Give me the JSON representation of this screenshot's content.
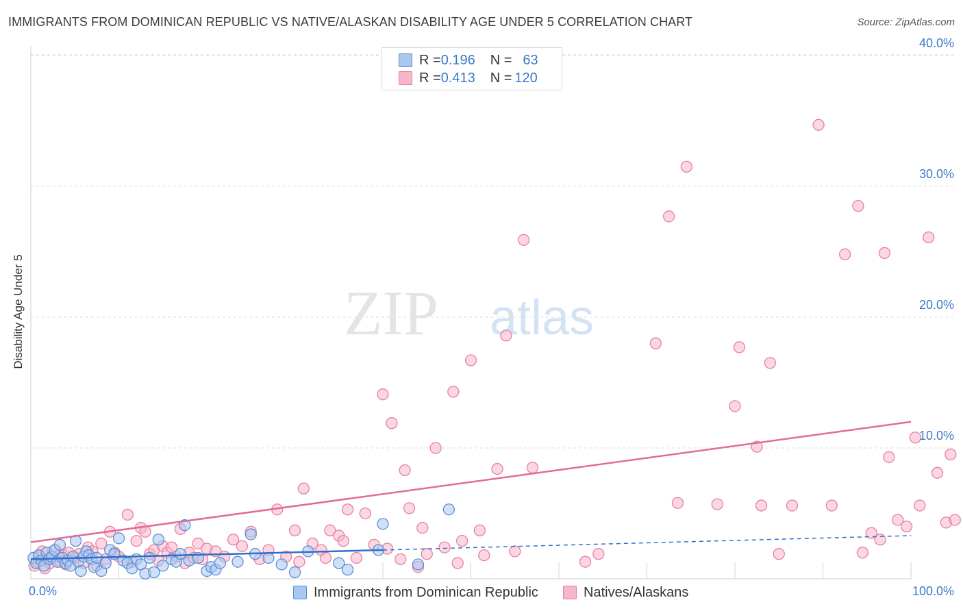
{
  "title": "IMMIGRANTS FROM DOMINICAN REPUBLIC VS NATIVE/ALASKAN DISABILITY AGE UNDER 5 CORRELATION CHART",
  "source": "Source: ZipAtlas.com",
  "watermark": {
    "zip": "ZIP",
    "atlas": "atlas"
  },
  "legend": {
    "rows": [
      {
        "r_label": "R = ",
        "r_value": "0.196",
        "n_label": "N = ",
        "n_value": "63"
      },
      {
        "r_label": "R = ",
        "r_value": "0.413",
        "n_label": "N = ",
        "n_value": "120"
      }
    ]
  },
  "colors": {
    "blue_fill": "#a9c8f0",
    "blue_stroke": "#5a8fd6",
    "blue_line": "#2f6fc9",
    "pink_fill": "#f6b7cb",
    "pink_stroke": "#e87fa1",
    "pink_line": "#e46a93",
    "tick_label": "#3a78c8",
    "grid": "#dcdcdc"
  },
  "chart_data": {
    "type": "scatter",
    "title": "IMMIGRANTS FROM DOMINICAN REPUBLIC VS NATIVE/ALASKAN DISABILITY AGE UNDER 5 CORRELATION CHART",
    "xlabel": "",
    "ylabel": "Disability Age Under 5",
    "xlim": [
      0,
      100
    ],
    "ylim": [
      0,
      42
    ],
    "x_tick_labels": [
      "0.0%",
      "100.0%"
    ],
    "y_ticks": [
      10,
      20,
      30,
      40
    ],
    "y_tick_labels": [
      "10.0%",
      "20.0%",
      "30.0%",
      "40.0%"
    ],
    "grid": true,
    "legend_position": "top-center",
    "series": [
      {
        "name": "Immigrants from Dominican Republic",
        "color": "#a9c8f0",
        "trend": {
          "x": [
            0,
            40
          ],
          "y": [
            1.5,
            2.2
          ],
          "dashed_x": [
            40,
            100
          ],
          "dashed_y": [
            2.2,
            3.3
          ]
        },
        "points": [
          [
            0.3,
            1.6
          ],
          [
            0.6,
            1.2
          ],
          [
            0.9,
            1.8
          ],
          [
            1.2,
            1.4
          ],
          [
            1.5,
            1.0
          ],
          [
            1.8,
            2.0
          ],
          [
            2.1,
            1.5
          ],
          [
            2.4,
            1.7
          ],
          [
            2.7,
            2.2
          ],
          [
            3.0,
            1.3
          ],
          [
            3.3,
            2.6
          ],
          [
            3.6,
            1.6
          ],
          [
            3.9,
            1.2
          ],
          [
            4.2,
            1.4
          ],
          [
            4.5,
            1.0
          ],
          [
            4.8,
            1.7
          ],
          [
            5.1,
            2.9
          ],
          [
            5.4,
            1.3
          ],
          [
            5.7,
            0.6
          ],
          [
            6.0,
            1.7
          ],
          [
            6.3,
            2.1
          ],
          [
            6.6,
            1.8
          ],
          [
            6.9,
            1.5
          ],
          [
            7.2,
            0.9
          ],
          [
            7.5,
            1.6
          ],
          [
            8.0,
            0.6
          ],
          [
            8.5,
            1.2
          ],
          [
            9.0,
            2.2
          ],
          [
            9.5,
            1.9
          ],
          [
            10.0,
            3.1
          ],
          [
            10.5,
            1.4
          ],
          [
            11.0,
            1.2
          ],
          [
            11.5,
            0.8
          ],
          [
            12.0,
            1.5
          ],
          [
            12.5,
            1.1
          ],
          [
            13.0,
            0.4
          ],
          [
            13.5,
            1.6
          ],
          [
            14.0,
            0.5
          ],
          [
            14.5,
            3.0
          ],
          [
            15.0,
            1.0
          ],
          [
            16.0,
            1.5
          ],
          [
            16.5,
            1.3
          ],
          [
            17.0,
            1.9
          ],
          [
            17.5,
            4.1
          ],
          [
            18.0,
            1.4
          ],
          [
            19.0,
            1.6
          ],
          [
            20.0,
            0.6
          ],
          [
            20.5,
            0.9
          ],
          [
            21.0,
            0.7
          ],
          [
            21.5,
            1.2
          ],
          [
            23.5,
            1.3
          ],
          [
            25.0,
            3.4
          ],
          [
            25.5,
            1.9
          ],
          [
            27.0,
            1.6
          ],
          [
            28.5,
            1.1
          ],
          [
            30.0,
            0.5
          ],
          [
            31.5,
            2.1
          ],
          [
            35.0,
            1.2
          ],
          [
            36.0,
            0.7
          ],
          [
            39.5,
            2.2
          ],
          [
            40.0,
            4.2
          ],
          [
            44.0,
            1.1
          ],
          [
            47.5,
            5.3
          ]
        ]
      },
      {
        "name": "Natives/Alaskans",
        "color": "#f6b7cb",
        "trend": {
          "x": [
            0,
            100
          ],
          "y": [
            2.8,
            12.0
          ]
        },
        "points": [
          [
            0.4,
            1.0
          ],
          [
            0.7,
            1.3
          ],
          [
            1.0,
            1.8
          ],
          [
            1.3,
            2.1
          ],
          [
            1.6,
            0.8
          ],
          [
            1.9,
            1.5
          ],
          [
            2.2,
            1.2
          ],
          [
            2.5,
            1.6
          ],
          [
            2.8,
            2.2
          ],
          [
            3.1,
            1.7
          ],
          [
            3.4,
            1.3
          ],
          [
            3.7,
            1.8
          ],
          [
            4.0,
            1.1
          ],
          [
            4.3,
            2.0
          ],
          [
            5.0,
            1.6
          ],
          [
            5.5,
            1.9
          ],
          [
            6.0,
            1.2
          ],
          [
            6.5,
            2.4
          ],
          [
            7.0,
            2.1
          ],
          [
            7.5,
            1.0
          ],
          [
            8.0,
            2.7
          ],
          [
            8.5,
            1.5
          ],
          [
            9.0,
            3.6
          ],
          [
            9.5,
            2.0
          ],
          [
            10.0,
            1.7
          ],
          [
            11.0,
            4.9
          ],
          [
            11.5,
            1.3
          ],
          [
            12.0,
            2.9
          ],
          [
            12.5,
            3.9
          ],
          [
            13.0,
            3.6
          ],
          [
            13.5,
            1.9
          ],
          [
            14.0,
            2.2
          ],
          [
            14.5,
            1.4
          ],
          [
            15.0,
            2.5
          ],
          [
            15.5,
            2.0
          ],
          [
            16.0,
            2.4
          ],
          [
            16.5,
            1.7
          ],
          [
            17.0,
            3.8
          ],
          [
            17.5,
            1.2
          ],
          [
            18.0,
            2.0
          ],
          [
            18.5,
            1.6
          ],
          [
            19.0,
            2.7
          ],
          [
            19.5,
            1.5
          ],
          [
            20.0,
            2.3
          ],
          [
            21.0,
            2.1
          ],
          [
            22.0,
            1.7
          ],
          [
            23.0,
            3.0
          ],
          [
            24.0,
            2.5
          ],
          [
            25.0,
            3.6
          ],
          [
            26.0,
            1.5
          ],
          [
            27.0,
            2.2
          ],
          [
            28.0,
            5.3
          ],
          [
            29.0,
            1.7
          ],
          [
            30.0,
            3.7
          ],
          [
            30.5,
            1.3
          ],
          [
            31.0,
            6.9
          ],
          [
            32.0,
            2.7
          ],
          [
            33.0,
            2.2
          ],
          [
            33.5,
            1.6
          ],
          [
            34.0,
            3.7
          ],
          [
            35.0,
            3.3
          ],
          [
            35.5,
            2.9
          ],
          [
            36.0,
            5.3
          ],
          [
            37.0,
            1.6
          ],
          [
            38.0,
            5.0
          ],
          [
            39.0,
            2.6
          ],
          [
            40.0,
            14.1
          ],
          [
            40.5,
            2.3
          ],
          [
            41.0,
            11.9
          ],
          [
            42.0,
            1.5
          ],
          [
            42.5,
            8.3
          ],
          [
            43.0,
            5.4
          ],
          [
            44.0,
            0.9
          ],
          [
            44.5,
            3.9
          ],
          [
            45.0,
            1.9
          ],
          [
            46.0,
            10.0
          ],
          [
            47.0,
            2.4
          ],
          [
            48.0,
            14.3
          ],
          [
            48.5,
            1.2
          ],
          [
            49.0,
            2.9
          ],
          [
            50.0,
            16.7
          ],
          [
            51.0,
            3.7
          ],
          [
            51.5,
            1.8
          ],
          [
            53.0,
            8.4
          ],
          [
            54.0,
            18.6
          ],
          [
            55.0,
            2.1
          ],
          [
            56.0,
            25.9
          ],
          [
            57.0,
            8.5
          ],
          [
            63.0,
            1.3
          ],
          [
            64.5,
            1.9
          ],
          [
            71.0,
            18.0
          ],
          [
            72.5,
            27.7
          ],
          [
            73.5,
            5.8
          ],
          [
            74.5,
            31.5
          ],
          [
            78.0,
            5.7
          ],
          [
            80.0,
            13.2
          ],
          [
            80.5,
            17.7
          ],
          [
            82.5,
            10.1
          ],
          [
            83.0,
            5.6
          ],
          [
            84.0,
            16.5
          ],
          [
            85.0,
            1.9
          ],
          [
            86.5,
            5.6
          ],
          [
            89.5,
            34.7
          ],
          [
            91.0,
            5.6
          ],
          [
            92.5,
            24.8
          ],
          [
            94.0,
            28.5
          ],
          [
            94.5,
            2.0
          ],
          [
            95.5,
            3.5
          ],
          [
            96.5,
            3.0
          ],
          [
            97.0,
            24.9
          ],
          [
            97.5,
            9.3
          ],
          [
            98.5,
            4.5
          ],
          [
            99.5,
            4.0
          ],
          [
            100.5,
            10.8
          ],
          [
            101.0,
            5.6
          ],
          [
            102.0,
            26.1
          ],
          [
            103.0,
            8.1
          ],
          [
            104.0,
            4.3
          ],
          [
            104.5,
            9.5
          ],
          [
            105.0,
            4.5
          ]
        ]
      }
    ]
  }
}
